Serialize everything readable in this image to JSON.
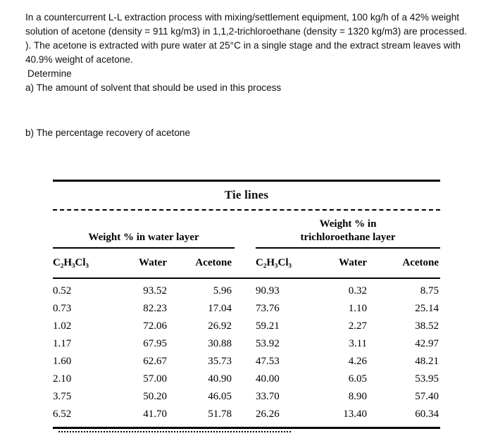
{
  "problem": {
    "intro": "In a countercurrent L-L extraction process with mixing/settlement equipment, 100 kg/h of a 42% weight solution of acetone (density = 911 kg/m3) in 1,1,2-trichloroethane (density = 1320 kg/m3) are processed. ).  The acetone is extracted with pure water at 25°C in a single stage and the extract stream leaves with 40.9% weight of acetone.",
    "determine": "Determine",
    "part_a": "a) The amount of solvent that should be used in this process",
    "part_b": "b) The percentage recovery of acetone"
  },
  "table": {
    "title": "Tie lines",
    "group_headers": {
      "left": "Weight % in water layer",
      "right": "Weight % in trichloroethane layer"
    },
    "column_headers": [
      "C₂H₃Cl₃",
      "Water",
      "Acetone",
      "C₂H₃Cl₃",
      "Water",
      "Acetone"
    ],
    "rows": [
      [
        "0.52",
        "93.52",
        "5.96",
        "90.93",
        "0.32",
        "8.75"
      ],
      [
        "0.73",
        "82.23",
        "17.04",
        "73.76",
        "1.10",
        "25.14"
      ],
      [
        "1.02",
        "72.06",
        "26.92",
        "59.21",
        "2.27",
        "38.52"
      ],
      [
        "1.17",
        "67.95",
        "30.88",
        "53.92",
        "3.11",
        "42.97"
      ],
      [
        "1.60",
        "62.67",
        "35.73",
        "47.53",
        "4.26",
        "48.21"
      ],
      [
        "2.10",
        "57.00",
        "40.90",
        "40.00",
        "6.05",
        "53.95"
      ],
      [
        "3.75",
        "50.20",
        "46.05",
        "33.70",
        "8.90",
        "57.40"
      ],
      [
        "6.52",
        "41.70",
        "51.78",
        "26.26",
        "13.40",
        "60.34"
      ]
    ]
  }
}
